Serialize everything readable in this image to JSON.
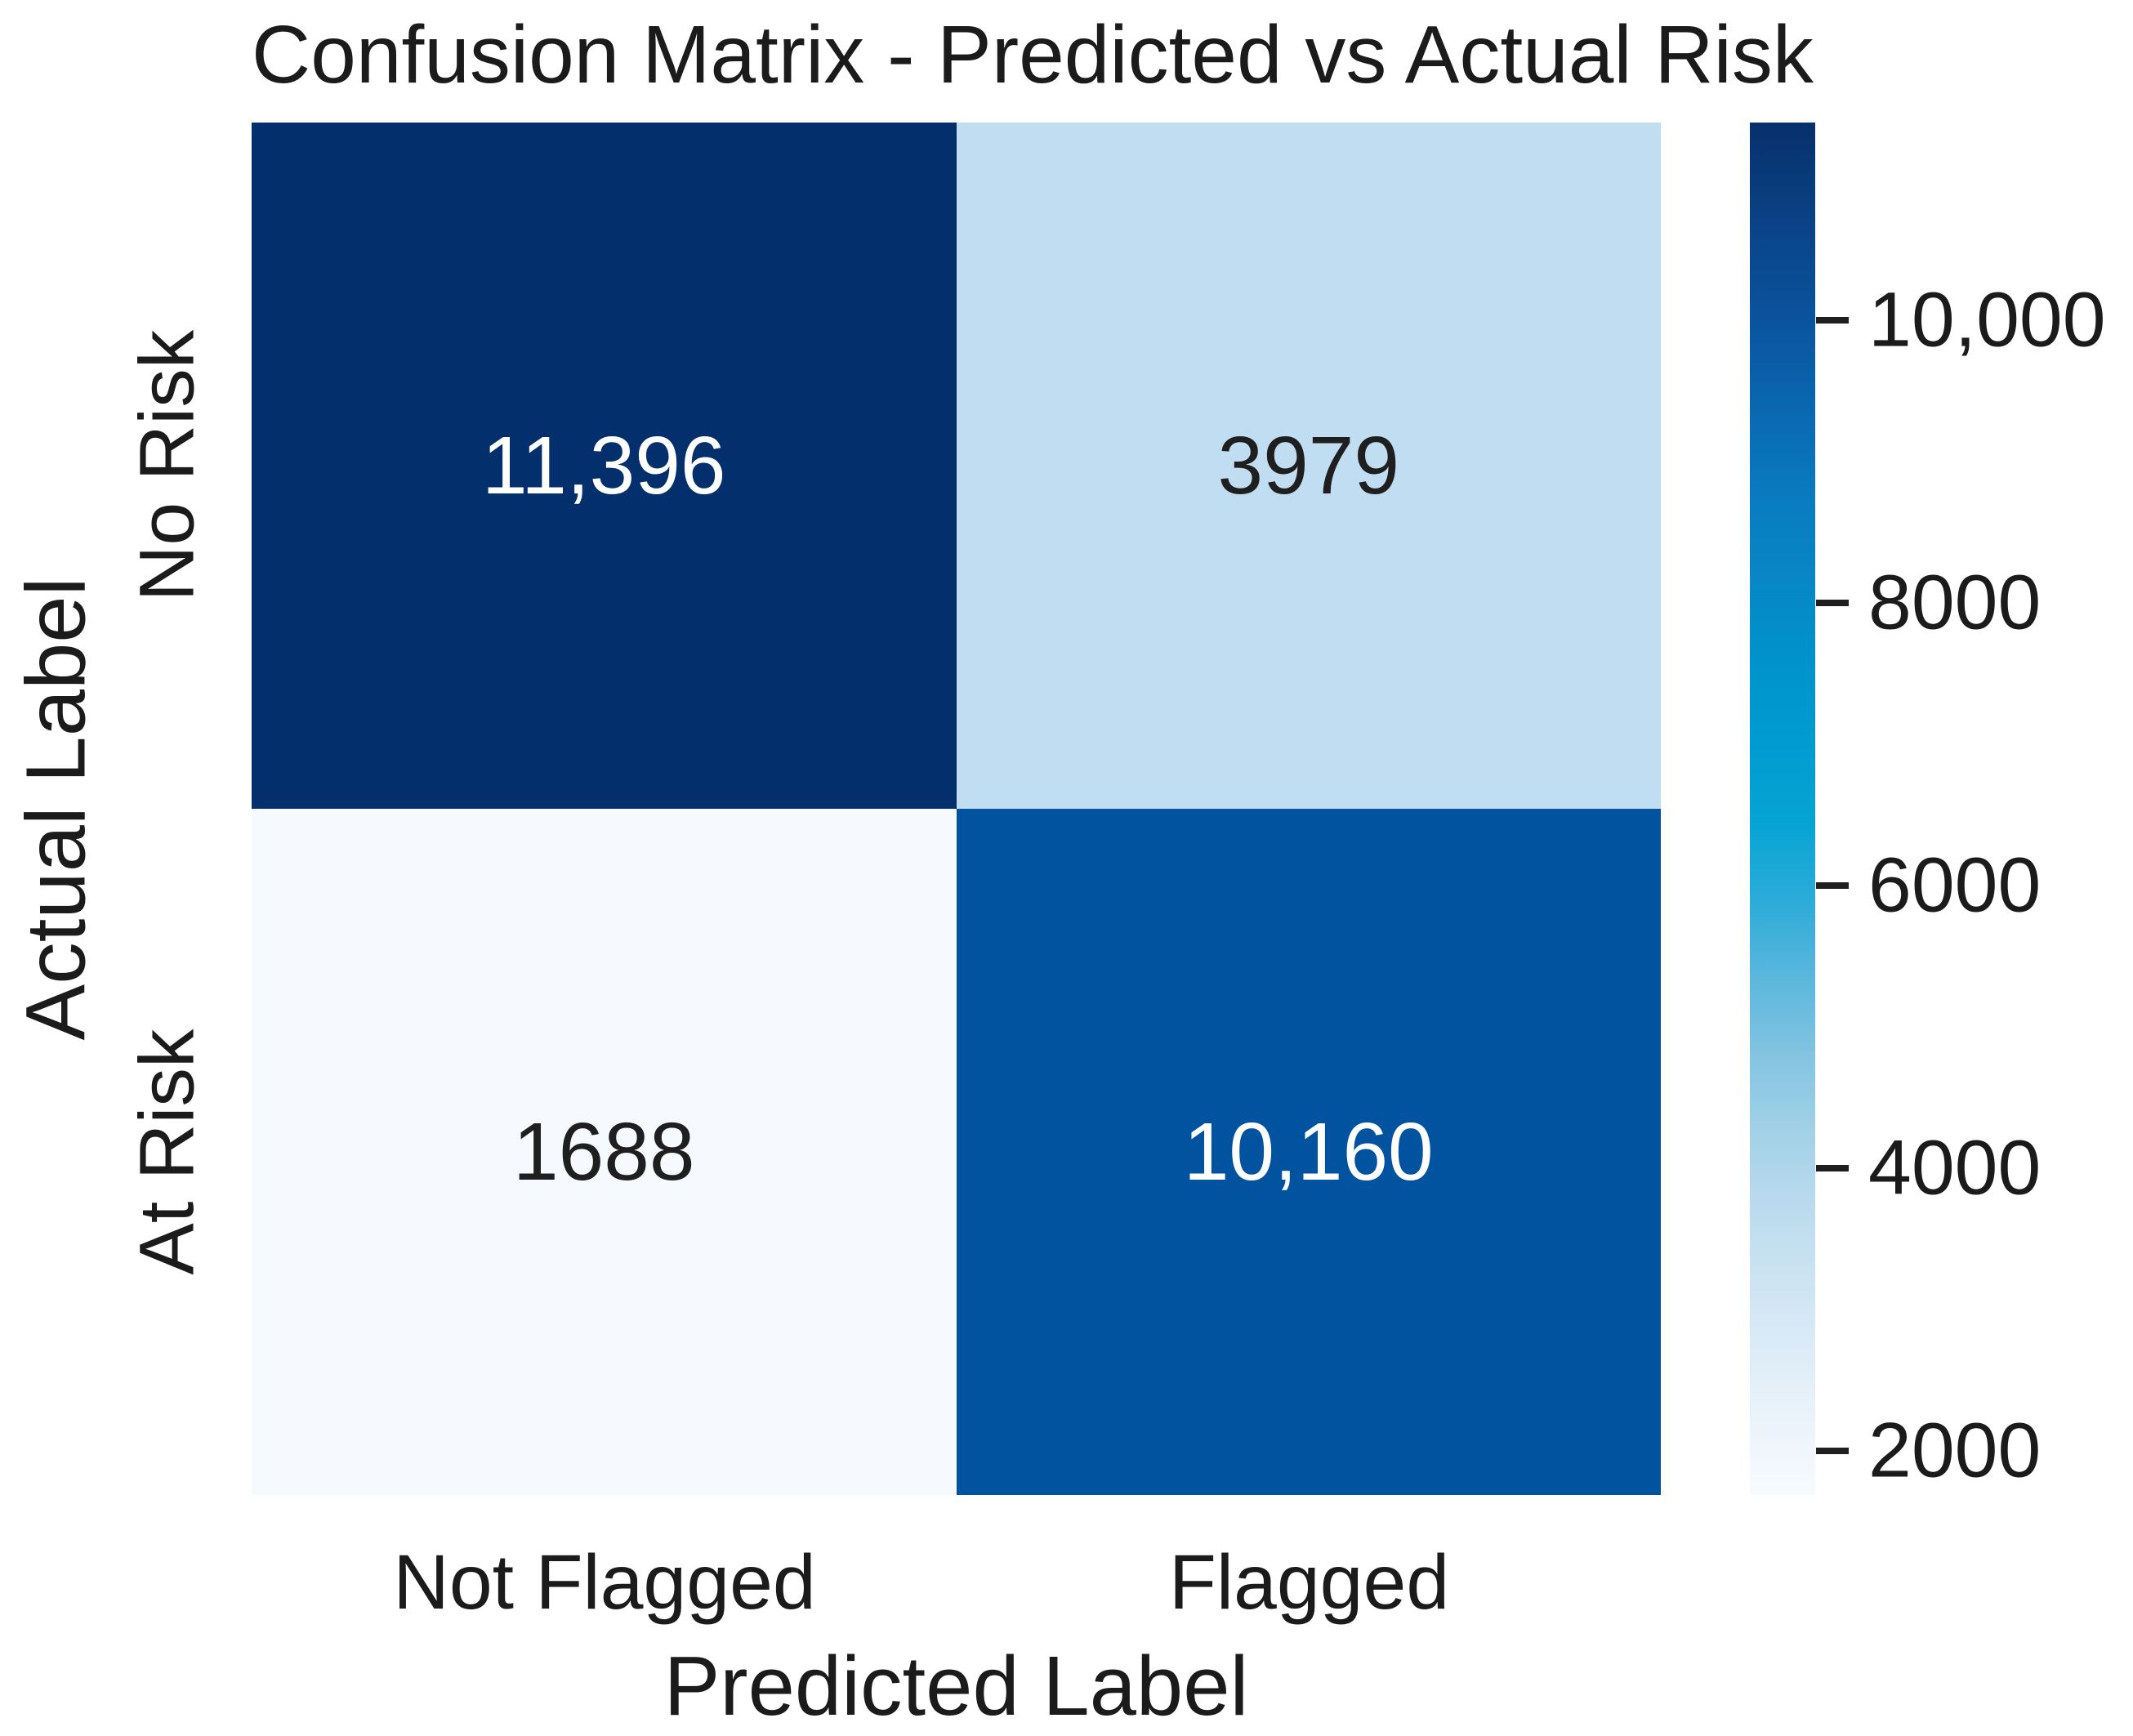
{
  "title": "Confusion Matrix - Predicted vs Actual Risk",
  "chart_data": {
    "type": "heatmap",
    "title": "Confusion Matrix - Predicted vs Actual Risk",
    "xlabel": "Predicted Label",
    "ylabel": "Actual Label",
    "x_categories": [
      "Not Flagged",
      "Flagged"
    ],
    "y_categories": [
      "No Risk",
      "At Risk"
    ],
    "values": [
      [
        11396,
        3979
      ],
      [
        1688,
        10160
      ]
    ],
    "vmin": 1688,
    "vmax": 11396,
    "grid": false,
    "legend_position": "right",
    "rows": [
      {
        "y_label": "No Risk",
        "cells": [
          {
            "value": 11396,
            "label": "11,396",
            "bg": "#032f6c",
            "fg": "#ffffff"
          },
          {
            "value": 3979,
            "label": "3979",
            "bg": "#c0ddf1",
            "fg": "#1f1f1f"
          }
        ]
      },
      {
        "y_label": "At Risk",
        "cells": [
          {
            "value": 1688,
            "label": "1688",
            "bg": "#f6f9fd",
            "fg": "#1f1f1f"
          },
          {
            "value": 10160,
            "label": "10,160",
            "bg": "#02539f",
            "fg": "#ffffff"
          }
        ]
      }
    ],
    "colorbar": {
      "tick_labels": [
        "10,000",
        "8000",
        "6000",
        "4000",
        "2000"
      ],
      "tick_values": [
        10000,
        8000,
        6000,
        4000,
        2000
      ],
      "gradient": [
        {
          "pos": 0,
          "color": "#f7fbff"
        },
        {
          "pos": 7,
          "color": "#e7f1f9"
        },
        {
          "pos": 14,
          "color": "#d2e6f4"
        },
        {
          "pos": 21,
          "color": "#bbdbee"
        },
        {
          "pos": 26,
          "color": "#a5d2e8"
        },
        {
          "pos": 32,
          "color": "#83c4e1"
        },
        {
          "pos": 38,
          "color": "#58b6dc"
        },
        {
          "pos": 43,
          "color": "#2eacd8"
        },
        {
          "pos": 49,
          "color": "#06a4d4"
        },
        {
          "pos": 55,
          "color": "#009bd0"
        },
        {
          "pos": 61,
          "color": "#0092cc"
        },
        {
          "pos": 67,
          "color": "#0886c6"
        },
        {
          "pos": 73,
          "color": "#0a7ac0"
        },
        {
          "pos": 79,
          "color": "#0a68b0"
        },
        {
          "pos": 85,
          "color": "#0a55a0"
        },
        {
          "pos": 92,
          "color": "#0a4488"
        },
        {
          "pos": 100,
          "color": "#08306b"
        }
      ]
    }
  }
}
